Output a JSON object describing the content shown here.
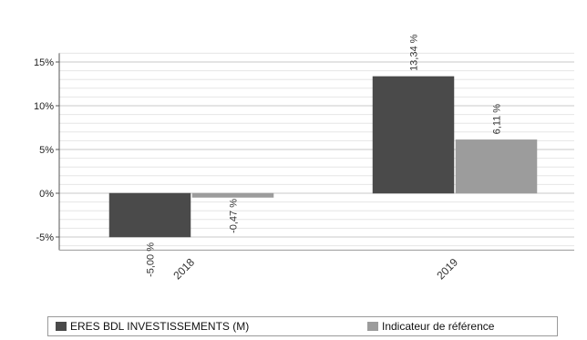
{
  "chart_data": {
    "type": "bar",
    "categories": [
      "2018",
      "2019"
    ],
    "series": [
      {
        "name": "ERES BDL INVESTISSEMENTS (M)",
        "values": [
          -5.0,
          13.34
        ],
        "labels": [
          "-5,00 %",
          "13,34 %"
        ],
        "color": "#4a4a4a"
      },
      {
        "name": "Indicateur de référence",
        "values": [
          -0.47,
          6.11
        ],
        "labels": [
          "-0,47 %",
          "6,11 %"
        ],
        "color": "#9c9c9c"
      }
    ],
    "ylim": [
      -6.5,
      16
    ],
    "yticks": [
      15,
      10,
      5,
      0,
      -5
    ],
    "ytick_labels": [
      "15%",
      "10%",
      "5%",
      "0%",
      "-5%"
    ],
    "grid": true,
    "legend_position": "bottom"
  }
}
